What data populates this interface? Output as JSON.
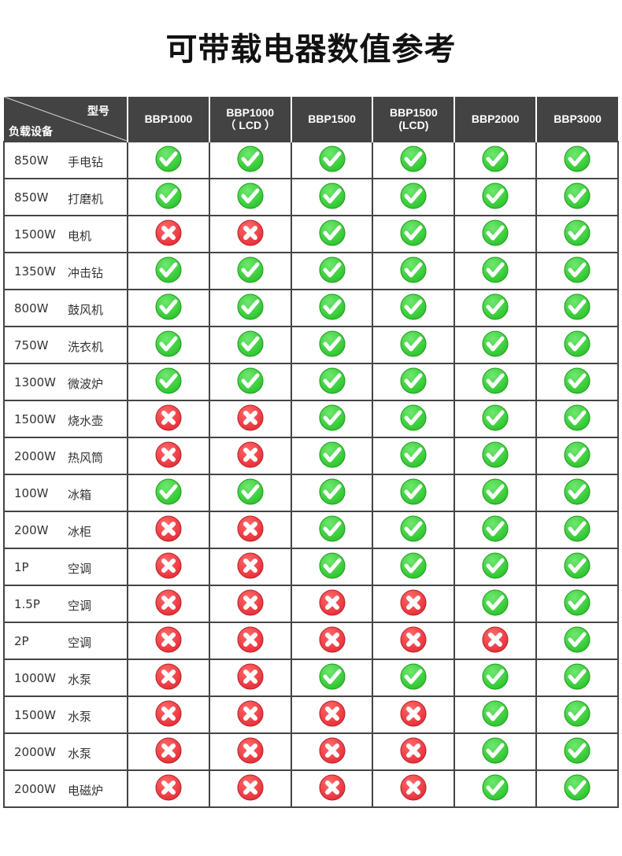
{
  "title": "可带载电器数值参考",
  "header": {
    "model_label": "型号",
    "device_label": "负载设备",
    "models": [
      [
        "BBP1000",
        ""
      ],
      [
        "BBP1000",
        "（ LCD ）"
      ],
      [
        "BBP1500",
        ""
      ],
      [
        "BBP1500",
        "(LCD)"
      ],
      [
        "BBP2000",
        ""
      ],
      [
        "BBP3000",
        ""
      ]
    ]
  },
  "rows": [
    {
      "power": "850W",
      "device": "手电钻",
      "support": [
        1,
        1,
        1,
        1,
        1,
        1
      ]
    },
    {
      "power": "850W",
      "device": "打磨机",
      "support": [
        1,
        1,
        1,
        1,
        1,
        1
      ]
    },
    {
      "power": "1500W",
      "device": "电机",
      "support": [
        0,
        0,
        1,
        1,
        1,
        1
      ]
    },
    {
      "power": "1350W",
      "device": "冲击钻",
      "support": [
        1,
        1,
        1,
        1,
        1,
        1
      ]
    },
    {
      "power": "800W",
      "device": "鼓风机",
      "support": [
        1,
        1,
        1,
        1,
        1,
        1
      ]
    },
    {
      "power": "750W",
      "device": "洗衣机",
      "support": [
        1,
        1,
        1,
        1,
        1,
        1
      ]
    },
    {
      "power": "1300W",
      "device": "微波炉",
      "support": [
        1,
        1,
        1,
        1,
        1,
        1
      ]
    },
    {
      "power": "1500W",
      "device": "烧水壶",
      "support": [
        0,
        0,
        1,
        1,
        1,
        1
      ]
    },
    {
      "power": "2000W",
      "device": "热风筒",
      "support": [
        0,
        0,
        1,
        1,
        1,
        1
      ]
    },
    {
      "power": "100W",
      "device": "冰箱",
      "support": [
        1,
        1,
        1,
        1,
        1,
        1
      ]
    },
    {
      "power": "200W",
      "device": "冰柜",
      "support": [
        0,
        0,
        1,
        1,
        1,
        1
      ]
    },
    {
      "power": "1P",
      "device": "空调",
      "support": [
        0,
        0,
        1,
        1,
        1,
        1
      ]
    },
    {
      "power": "1.5P",
      "device": "空调",
      "support": [
        0,
        0,
        0,
        0,
        1,
        1
      ]
    },
    {
      "power": "2P",
      "device": "空调",
      "support": [
        0,
        0,
        0,
        0,
        0,
        1
      ]
    },
    {
      "power": "1000W",
      "device": "水泵",
      "support": [
        0,
        0,
        1,
        1,
        1,
        1
      ]
    },
    {
      "power": "1500W",
      "device": "水泵",
      "support": [
        0,
        0,
        0,
        0,
        1,
        1
      ]
    },
    {
      "power": "2000W",
      "device": "水泵",
      "support": [
        0,
        0,
        0,
        0,
        1,
        1
      ]
    },
    {
      "power": "2000W",
      "device": "电磁炉",
      "support": [
        0,
        0,
        0,
        0,
        1,
        1
      ]
    }
  ],
  "colors": {
    "check": "#2ec52e",
    "cross": "#e8303a",
    "header_bg": "#434343"
  },
  "icons": {
    "yes": "check-icon",
    "no": "cross-icon"
  }
}
